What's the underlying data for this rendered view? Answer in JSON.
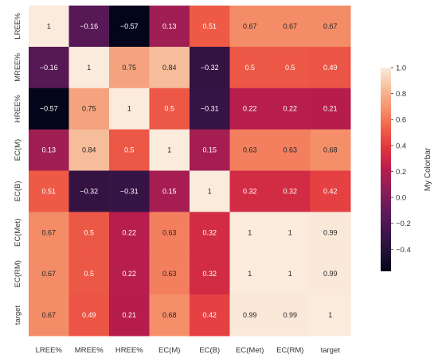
{
  "chart_data": {
    "type": "heatmap",
    "x_labels": [
      "LREE%",
      "MREE%",
      "HREE%",
      "EC(M)",
      "EC(B)",
      "EC(Met)",
      "EC(RM)",
      "target"
    ],
    "y_labels": [
      "LREE%",
      "MREE%",
      "HREE%",
      "EC(M)",
      "EC(B)",
      "EC(Met)",
      "EC(RM)",
      "target"
    ],
    "values": [
      [
        1,
        -0.16,
        -0.57,
        0.13,
        0.51,
        0.67,
        0.67,
        0.67
      ],
      [
        -0.16,
        1,
        0.75,
        0.84,
        -0.32,
        0.5,
        0.5,
        0.49
      ],
      [
        -0.57,
        0.75,
        1,
        0.5,
        -0.31,
        0.22,
        0.22,
        0.21
      ],
      [
        0.13,
        0.84,
        0.5,
        1,
        0.15,
        0.63,
        0.63,
        0.68
      ],
      [
        0.51,
        -0.32,
        -0.31,
        0.15,
        1,
        0.32,
        0.32,
        0.42
      ],
      [
        0.67,
        0.5,
        0.22,
        0.63,
        0.32,
        1,
        1,
        0.99
      ],
      [
        0.67,
        0.5,
        0.22,
        0.63,
        0.32,
        1,
        1,
        0.99
      ],
      [
        0.67,
        0.49,
        0.21,
        0.68,
        0.42,
        0.99,
        0.99,
        1
      ]
    ],
    "colorbar": {
      "label": "My Colorbar",
      "range": [
        -0.57,
        1
      ],
      "ticks": [
        1.0,
        0.8,
        0.6,
        0.4,
        0.2,
        0.0,
        -0.2,
        -0.4
      ],
      "tick_labels": [
        "1.0",
        "0.8",
        "0.6",
        "0.4",
        "0.2",
        "0.0",
        "−0.2",
        "−0.4"
      ],
      "colormap": "rocket"
    },
    "grid": false
  }
}
